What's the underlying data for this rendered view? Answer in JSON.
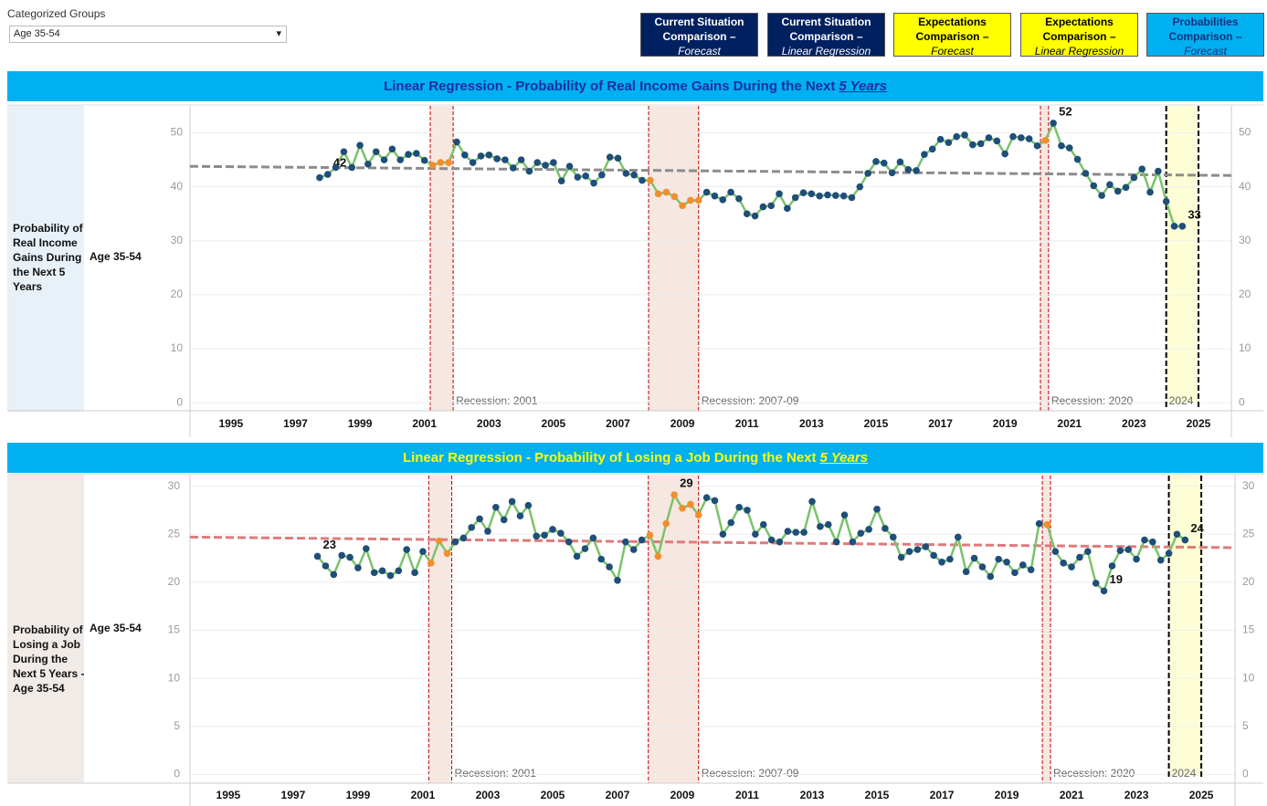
{
  "controls": {
    "filter_title": "Categorized Groups",
    "filter_value": "Age 35-54",
    "buttons": [
      {
        "lines": [
          "Current Situation",
          "Comparison –",
          "Forecast"
        ],
        "bg": "#002060",
        "fg": "#ffffff"
      },
      {
        "lines": [
          "Current Situation",
          "Comparison –",
          "Linear Regression"
        ],
        "bg": "#002060",
        "fg": "#ffffff"
      },
      {
        "lines": [
          "Expectations",
          "Comparison –",
          "Forecast"
        ],
        "bg": "#ffff00",
        "fg": "#000000"
      },
      {
        "lines": [
          "Expectations",
          "Comparison –",
          "Linear Regression"
        ],
        "bg": "#ffff00",
        "fg": "#000000"
      },
      {
        "lines": [
          "Probabilities",
          "Comparison –",
          "Forecast"
        ],
        "bg": "#00b0f0",
        "fg": "#1a2f7e"
      }
    ]
  },
  "chart_data": [
    {
      "type": "line",
      "title": "Linear Regression - Probability of Real Income Gains During the Next",
      "title_emphasis": "5 Years",
      "title_color": "#1a2f9e",
      "row_label": "Probability of Real Income Gains During the Next 5 Years",
      "group_label": "Age 35-54",
      "x": [
        1997.75,
        1998,
        1998.25,
        1998.5,
        1998.75,
        1999,
        1999.25,
        1999.5,
        1999.75,
        2000,
        2000.25,
        2000.5,
        2000.75,
        2001,
        2001.25,
        2001.5,
        2001.75,
        2002,
        2002.25,
        2002.5,
        2002.75,
        2003,
        2003.25,
        2003.5,
        2003.75,
        2004,
        2004.25,
        2004.5,
        2004.75,
        2005,
        2005.25,
        2005.5,
        2005.75,
        2006,
        2006.25,
        2006.5,
        2006.75,
        2007,
        2007.25,
        2007.5,
        2007.75,
        2008,
        2008.25,
        2008.5,
        2008.75,
        2009,
        2009.25,
        2009.5,
        2009.75,
        2010,
        2010.25,
        2010.5,
        2010.75,
        2011,
        2011.25,
        2011.5,
        2011.75,
        2012,
        2012.25,
        2012.5,
        2012.75,
        2013,
        2013.25,
        2013.5,
        2013.75,
        2014,
        2014.25,
        2014.5,
        2014.75,
        2015,
        2015.25,
        2015.5,
        2015.75,
        2016,
        2016.25,
        2016.5,
        2016.75,
        2017,
        2017.25,
        2017.5,
        2017.75,
        2018,
        2018.25,
        2018.5,
        2018.75,
        2019,
        2019.25,
        2019.5,
        2019.75,
        2020,
        2020.25,
        2020.5,
        2020.75,
        2021,
        2021.25,
        2021.5,
        2021.75,
        2022,
        2022.25,
        2022.5,
        2022.75,
        2023,
        2023.25,
        2023.5,
        2023.75,
        2024,
        2024.25,
        2024.5
      ],
      "values": [
        41.7,
        42.3,
        43.6,
        46.5,
        43.6,
        47.7,
        44.2,
        46.5,
        45,
        47,
        45,
        46,
        46.2,
        44.9,
        44,
        44.5,
        44.5,
        48.3,
        45.9,
        44.5,
        45.7,
        45.9,
        45.2,
        45,
        43.5,
        45,
        42.9,
        44.5,
        44,
        44.5,
        41.1,
        43.8,
        41.8,
        42,
        40.7,
        42.2,
        45.5,
        45.3,
        42.5,
        42.2,
        41.2,
        41.2,
        38.7,
        39,
        38.2,
        36.5,
        37.5,
        37.5,
        39,
        38.3,
        37.6,
        39,
        37.8,
        35,
        34.6,
        36.3,
        36.5,
        38.7,
        36,
        38,
        38.9,
        38.7,
        38.3,
        38.5,
        38.4,
        38.3,
        38,
        40,
        42.5,
        44.7,
        44.4,
        42.6,
        44.6,
        43.2,
        43,
        46,
        47,
        48.8,
        48.2,
        49.3,
        49.6,
        47.8,
        48,
        49.1,
        48.5,
        46.1,
        49.3,
        49.1,
        48.9,
        47.6,
        48.6,
        51.8,
        47.6,
        47.2,
        45.1,
        42.5,
        40.2,
        38.4,
        40.4,
        39.2,
        39.9,
        41.7,
        43.3,
        39,
        42.9,
        37.3,
        32.7,
        32.7
      ],
      "value_labels": [
        null,
        "42",
        null,
        null,
        null,
        null,
        null,
        null,
        null,
        null,
        null,
        null,
        null,
        null,
        null,
        null,
        null,
        null,
        null,
        null,
        null,
        null,
        null,
        null,
        null,
        null,
        null,
        null,
        null,
        null,
        null,
        null,
        null,
        null,
        null,
        null,
        null,
        null,
        null,
        null,
        null,
        null,
        null,
        null,
        null,
        null,
        null,
        null,
        null,
        null,
        null,
        null,
        null,
        null,
        null,
        null,
        null,
        null,
        null,
        null,
        null,
        null,
        null,
        null,
        null,
        null,
        null,
        null,
        null,
        null,
        null,
        null,
        null,
        null,
        null,
        null,
        null,
        null,
        null,
        null,
        null,
        null,
        null,
        null,
        null,
        null,
        null,
        null,
        null,
        null,
        null,
        "52",
        null,
        null,
        null,
        null,
        null,
        null,
        null,
        null,
        null,
        null,
        null,
        null,
        null,
        null,
        null,
        "33"
      ],
      "color": "#1f4e79",
      "line_color": "#7ac36a",
      "highlight_color": "#f28e2b",
      "trend": {
        "values": [
          43.8,
          42.1
        ],
        "color": "#8c8c8c"
      },
      "recessions": [
        {
          "start": 2001.18,
          "end": 2001.89,
          "label": "Recession: 2001"
        },
        {
          "start": 2007.95,
          "end": 2009.5,
          "label": "Recession: 2007-09"
        },
        {
          "start": 2020.1,
          "end": 2020.35,
          "label": "Recession: 2020"
        }
      ],
      "recession_color": "#c00000",
      "recession_fill": "#f6e7e1",
      "forecast": {
        "start": 2024,
        "end": 2025,
        "label": "2024",
        "fill": "#fdfed6"
      },
      "xlim": [
        1993.73,
        2026.02
      ],
      "xticks": [
        1995,
        1997,
        1999,
        2001,
        2003,
        2005,
        2007,
        2009,
        2011,
        2013,
        2015,
        2017,
        2019,
        2021,
        2023,
        2025
      ],
      "ylim": [
        -1.5,
        55
      ],
      "yticks": [
        0,
        10,
        20,
        30,
        40,
        50
      ],
      "grid": true
    },
    {
      "type": "line",
      "title": "Linear Regression - Probability of Losing a Job During the Next",
      "title_emphasis": "5 Years",
      "title_color": "#ffff00",
      "row_label": "Probability of Losing a Job During the Next 5 Years - Age 35-54",
      "group_label": "Age 35-54",
      "x": [
        1997.75,
        1998,
        1998.25,
        1998.5,
        1998.75,
        1999,
        1999.25,
        1999.5,
        1999.75,
        2000,
        2000.25,
        2000.5,
        2000.75,
        2001,
        2001.25,
        2001.5,
        2001.75,
        2002,
        2002.25,
        2002.5,
        2002.75,
        2003,
        2003.25,
        2003.5,
        2003.75,
        2004,
        2004.25,
        2004.5,
        2004.75,
        2005,
        2005.25,
        2005.5,
        2005.75,
        2006,
        2006.25,
        2006.5,
        2006.75,
        2007,
        2007.25,
        2007.5,
        2007.75,
        2008,
        2008.25,
        2008.5,
        2008.75,
        2009,
        2009.25,
        2009.5,
        2009.75,
        2010,
        2010.25,
        2010.5,
        2010.75,
        2011,
        2011.25,
        2011.5,
        2011.75,
        2012,
        2012.25,
        2012.5,
        2012.75,
        2013,
        2013.25,
        2013.5,
        2013.75,
        2014,
        2014.25,
        2014.5,
        2014.75,
        2015,
        2015.25,
        2015.5,
        2015.75,
        2016,
        2016.25,
        2016.5,
        2016.75,
        2017,
        2017.25,
        2017.5,
        2017.75,
        2018,
        2018.25,
        2018.5,
        2018.75,
        2019,
        2019.25,
        2019.5,
        2019.75,
        2020,
        2020.25,
        2020.5,
        2020.75,
        2021,
        2021.25,
        2021.5,
        2021.75,
        2022,
        2022.25,
        2022.5,
        2022.75,
        2023,
        2023.25,
        2023.5,
        2023.75,
        2024,
        2024.25,
        2024.5
      ],
      "values": [
        22.7,
        21.7,
        20.8,
        22.8,
        22.6,
        21.5,
        23.5,
        21,
        21.2,
        20.7,
        21.2,
        23.4,
        21,
        23.2,
        22,
        24.3,
        23,
        24.2,
        24.6,
        25.7,
        26.6,
        25.3,
        27.8,
        26.5,
        28.4,
        26.9,
        28,
        24.8,
        24.9,
        25.5,
        25.1,
        24.2,
        22.7,
        23.5,
        24.6,
        22.4,
        21.6,
        20.2,
        24.2,
        23.4,
        24.4,
        24.9,
        22.7,
        26.1,
        29.1,
        27.7,
        28.1,
        27,
        28.8,
        28.5,
        25,
        26.2,
        27.8,
        27.5,
        25,
        26,
        24.4,
        24.2,
        25.3,
        25.2,
        25.2,
        28.4,
        25.8,
        26,
        24.2,
        27,
        24.2,
        25.1,
        25.5,
        27.6,
        25.6,
        24.7,
        22.6,
        23.2,
        23.4,
        23.7,
        22.8,
        22.1,
        22.4,
        24.7,
        21.1,
        22.5,
        21.6,
        20.6,
        22.4,
        22.1,
        21,
        21.8,
        21.3,
        26.1,
        26,
        23.2,
        22,
        21.6,
        22.6,
        23.2,
        19.9,
        19.1,
        21.7,
        23.3,
        23.4,
        22.4,
        24.4,
        24.2,
        22.3,
        23,
        25,
        24.4
      ],
      "value_labels": [
        "23",
        null,
        null,
        null,
        null,
        null,
        null,
        null,
        null,
        null,
        null,
        null,
        null,
        null,
        null,
        null,
        null,
        null,
        null,
        null,
        null,
        null,
        null,
        null,
        null,
        null,
        null,
        null,
        null,
        null,
        null,
        null,
        null,
        null,
        null,
        null,
        null,
        null,
        null,
        null,
        null,
        null,
        null,
        null,
        "29",
        null,
        null,
        null,
        null,
        null,
        null,
        null,
        null,
        null,
        null,
        null,
        null,
        null,
        null,
        null,
        null,
        null,
        null,
        null,
        null,
        null,
        null,
        null,
        null,
        null,
        null,
        null,
        null,
        null,
        null,
        null,
        null,
        null,
        null,
        null,
        null,
        null,
        null,
        null,
        null,
        null,
        null,
        null,
        null,
        null,
        null,
        null,
        null,
        null,
        null,
        null,
        null,
        "19",
        null,
        null,
        null,
        null,
        null,
        null,
        null,
        null,
        null,
        "24"
      ],
      "color": "#1f4e79",
      "line_color": "#7ac36a",
      "highlight_color": "#f28e2b",
      "trend": {
        "values": [
          24.7,
          23.6
        ],
        "color": "#e07a7a"
      },
      "recessions": [
        {
          "start": 2001.18,
          "end": 2001.89,
          "label": "Recession: 2001"
        },
        {
          "start": 2007.95,
          "end": 2009.5,
          "label": "Recession: 2007-09"
        },
        {
          "start": 2020.1,
          "end": 2020.35,
          "label": "Recession: 2020"
        }
      ],
      "recession_color": "#c00000",
      "recession_fill": "#f6e7e1",
      "forecast": {
        "start": 2024,
        "end": 2025,
        "label": "2024",
        "fill": "#fdfed6"
      },
      "xlim": [
        1993.82,
        2026.04
      ],
      "xticks": [
        1995,
        1997,
        1999,
        2001,
        2003,
        2005,
        2007,
        2009,
        2011,
        2013,
        2015,
        2017,
        2019,
        2021,
        2023,
        2025
      ],
      "ylim": [
        -0.9,
        31.1
      ],
      "yticks": [
        0,
        5,
        10,
        15,
        20,
        25,
        30
      ],
      "grid": true
    }
  ]
}
